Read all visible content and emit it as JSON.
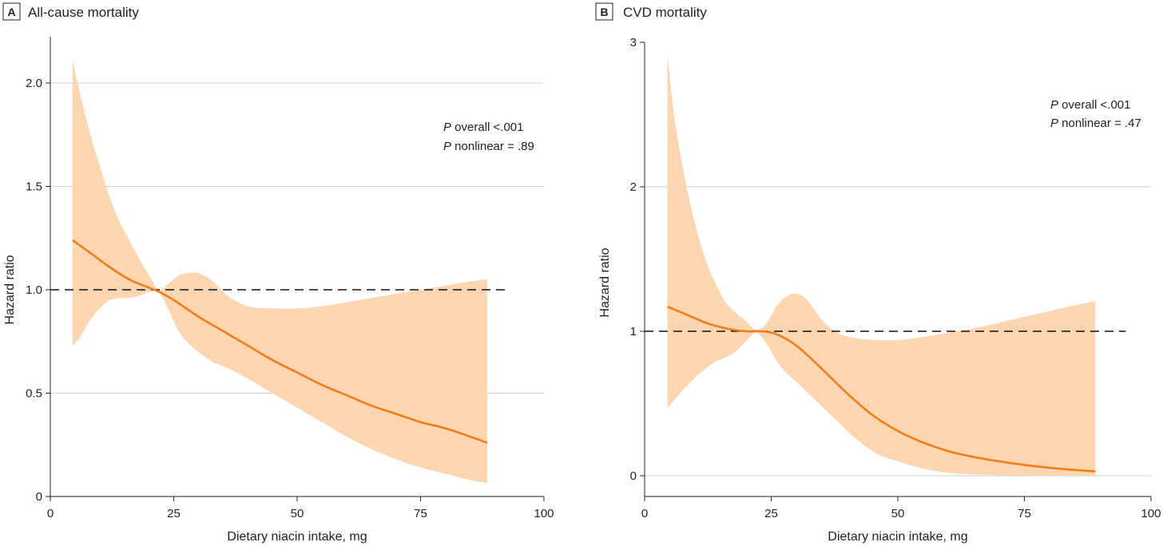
{
  "chart_data": [
    {
      "type": "line",
      "panel": "A",
      "title": "All-cause mortality",
      "xlabel": "Dietary niacin intake, mg",
      "ylabel": "Hazard ratio",
      "xlim": [
        0,
        100
      ],
      "ylim": [
        0,
        2.2
      ],
      "xticks": [
        0,
        25,
        50,
        75,
        100
      ],
      "xtick_labels": [
        "0",
        "25",
        "50",
        "75",
        "100"
      ],
      "yticks": [
        0,
        0.5,
        1.0,
        1.5,
        2.0
      ],
      "ytick_labels": [
        "0",
        "0.5",
        "1.0",
        "1.5",
        "2.0"
      ],
      "gridlines": [
        0.5,
        1.5,
        2.0
      ],
      "reference_line": {
        "y": 1.0,
        "x_range": [
          0,
          93
        ],
        "style": "dashed"
      },
      "annotation": {
        "lines": [
          {
            "italic": "P",
            "rest": " overall <.001"
          },
          {
            "italic": "P",
            "rest": " nonlinear = .89"
          }
        ]
      },
      "colors": {
        "line": "#f07d1a",
        "ci": "#fbd6b0",
        "grid": "#cccccc"
      },
      "series": [
        {
          "name": "Hazard ratio",
          "x": [
            4.5,
            8,
            12,
            16,
            20,
            22,
            25,
            30,
            35,
            40,
            45,
            50,
            55,
            60,
            65,
            70,
            75,
            80,
            85,
            88.5
          ],
          "y": [
            1.24,
            1.18,
            1.11,
            1.05,
            1.01,
            0.99,
            0.95,
            0.87,
            0.8,
            0.73,
            0.66,
            0.6,
            0.54,
            0.49,
            0.44,
            0.4,
            0.36,
            0.33,
            0.29,
            0.26
          ]
        },
        {
          "name": "95% CI upper",
          "x": [
            4.5,
            6,
            8,
            10,
            12,
            14,
            16,
            18,
            20,
            22,
            24,
            26,
            28,
            30,
            33,
            36,
            40,
            45,
            50,
            55,
            60,
            65,
            70,
            75,
            80,
            85,
            88.5
          ],
          "y": [
            2.11,
            1.95,
            1.76,
            1.6,
            1.45,
            1.33,
            1.24,
            1.15,
            1.07,
            1.0,
            1.03,
            1.07,
            1.08,
            1.08,
            1.04,
            0.97,
            0.92,
            0.91,
            0.91,
            0.92,
            0.94,
            0.96,
            0.98,
            1.0,
            1.02,
            1.04,
            1.05
          ]
        },
        {
          "name": "95% CI lower",
          "x": [
            4.5,
            6,
            8,
            10,
            12,
            14,
            16,
            18,
            20,
            22,
            24,
            26,
            28,
            30,
            33,
            36,
            40,
            45,
            50,
            55,
            60,
            65,
            70,
            75,
            80,
            85,
            88.5
          ],
          "y": [
            0.73,
            0.77,
            0.85,
            0.91,
            0.95,
            0.96,
            0.96,
            0.97,
            0.99,
            0.99,
            0.9,
            0.8,
            0.74,
            0.7,
            0.65,
            0.62,
            0.57,
            0.5,
            0.43,
            0.36,
            0.29,
            0.23,
            0.18,
            0.14,
            0.11,
            0.08,
            0.065
          ]
        }
      ]
    },
    {
      "type": "line",
      "panel": "B",
      "title": "CVD mortality",
      "xlabel": "Dietary niacin intake, mg",
      "ylabel": "Hazard ratio",
      "xlim": [
        0,
        100
      ],
      "ylim": [
        -0.1,
        3
      ],
      "xticks": [
        0,
        25,
        50,
        75,
        100
      ],
      "xtick_labels": [
        "0",
        "25",
        "50",
        "75",
        "100"
      ],
      "yticks": [
        0,
        1,
        2,
        3
      ],
      "ytick_labels": [
        "0",
        "1",
        "2",
        "3"
      ],
      "gridlines": [
        0,
        2
      ],
      "reference_line": {
        "y": 1,
        "x_range": [
          0,
          95
        ],
        "style": "dashed"
      },
      "annotation": {
        "lines": [
          {
            "italic": "P",
            "rest": " overall <.001"
          },
          {
            "italic": "P",
            "rest": " nonlinear = .47"
          }
        ]
      },
      "colors": {
        "line": "#f07d1a",
        "ci": "#fbd6b0",
        "grid": "#cccccc"
      },
      "series": [
        {
          "name": "Hazard ratio",
          "x": [
            4.5,
            8,
            12,
            16,
            20,
            23,
            26,
            30,
            35,
            40,
            45,
            50,
            55,
            60,
            65,
            70,
            75,
            80,
            85,
            89
          ],
          "y": [
            1.17,
            1.12,
            1.06,
            1.02,
            1.0,
            1.0,
            0.98,
            0.9,
            0.74,
            0.57,
            0.42,
            0.31,
            0.23,
            0.17,
            0.13,
            0.1,
            0.075,
            0.055,
            0.04,
            0.03
          ]
        },
        {
          "name": "95% CI upper",
          "x": [
            4.5,
            6,
            8,
            10,
            12,
            14,
            16,
            18,
            20,
            22,
            24,
            26,
            28,
            30,
            32,
            35,
            38,
            42,
            46,
            50,
            55,
            60,
            65,
            70,
            75,
            80,
            85,
            89
          ],
          "y": [
            2.91,
            2.45,
            2.05,
            1.74,
            1.5,
            1.33,
            1.2,
            1.13,
            1.07,
            1.01,
            1.05,
            1.17,
            1.24,
            1.26,
            1.22,
            1.08,
            0.99,
            0.95,
            0.94,
            0.94,
            0.96,
            0.99,
            1.02,
            1.06,
            1.1,
            1.14,
            1.18,
            1.21
          ]
        },
        {
          "name": "95% CI lower",
          "x": [
            4.5,
            6,
            8,
            10,
            12,
            14,
            16,
            18,
            20,
            22,
            24,
            26,
            28,
            30,
            32,
            35,
            38,
            42,
            46,
            50,
            55,
            60,
            65,
            70,
            75,
            80,
            85,
            89
          ],
          "y": [
            0.47,
            0.53,
            0.61,
            0.68,
            0.74,
            0.79,
            0.82,
            0.86,
            0.93,
            0.99,
            0.92,
            0.8,
            0.71,
            0.65,
            0.58,
            0.48,
            0.38,
            0.25,
            0.15,
            0.1,
            0.05,
            0.02,
            0.01,
            0.005,
            0.002,
            0.001,
            0.0,
            0.0
          ]
        }
      ]
    }
  ]
}
